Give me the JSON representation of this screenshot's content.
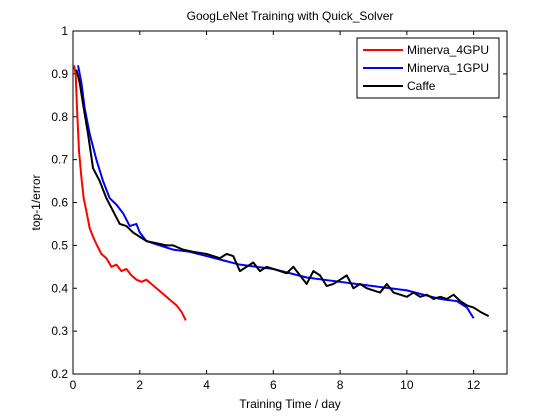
{
  "chart_data": {
    "type": "line",
    "title": "GoogLeNet Training with Quick_Solver",
    "xlabel": "Training Time / day",
    "ylabel": "top-1/error",
    "xlim": [
      0,
      13
    ],
    "ylim": [
      0.2,
      1
    ],
    "x_ticks": [
      0,
      2,
      4,
      6,
      8,
      10,
      12
    ],
    "y_ticks": [
      0.2,
      0.3,
      0.4,
      0.5,
      0.6,
      0.7,
      0.8,
      0.9,
      1
    ],
    "x_tick_labels": [
      "0",
      "2",
      "4",
      "6",
      "8",
      "10",
      "12"
    ],
    "y_tick_labels": [
      "0.2",
      "0.3",
      "0.4",
      "0.5",
      "0.6",
      "0.7",
      "0.8",
      "0.9",
      "1"
    ],
    "grid": false,
    "legend_position": "top-right",
    "series": [
      {
        "name": "Minerva_4GPU",
        "color": "#ff0000",
        "x": [
          0.03,
          0.08,
          0.12,
          0.18,
          0.25,
          0.32,
          0.4,
          0.5,
          0.6,
          0.72,
          0.85,
          1.0,
          1.15,
          1.3,
          1.45,
          1.6,
          1.75,
          1.9,
          2.05,
          2.2,
          2.35,
          2.5,
          2.65,
          2.8,
          2.95,
          3.1,
          3.25,
          3.38
        ],
        "y": [
          0.92,
          0.9,
          0.82,
          0.72,
          0.66,
          0.61,
          0.58,
          0.54,
          0.52,
          0.5,
          0.48,
          0.47,
          0.45,
          0.455,
          0.44,
          0.445,
          0.43,
          0.42,
          0.415,
          0.42,
          0.41,
          0.4,
          0.39,
          0.38,
          0.37,
          0.36,
          0.345,
          0.325
        ]
      },
      {
        "name": "Minerva_1GPU",
        "color": "#0000ff",
        "x": [
          0.15,
          0.25,
          0.35,
          0.5,
          0.7,
          0.9,
          1.1,
          1.3,
          1.5,
          1.7,
          1.9,
          2.0,
          2.2,
          2.6,
          3.0,
          3.5,
          4.0,
          4.5,
          5.0,
          5.5,
          6.0,
          6.5,
          7.0,
          7.5,
          8.0,
          8.5,
          9.0,
          9.5,
          10.0,
          10.5,
          11.0,
          11.5,
          11.8,
          12.0
        ],
        "y": [
          0.92,
          0.88,
          0.82,
          0.76,
          0.7,
          0.65,
          0.61,
          0.595,
          0.575,
          0.545,
          0.55,
          0.53,
          0.51,
          0.5,
          0.49,
          0.485,
          0.475,
          0.465,
          0.455,
          0.45,
          0.445,
          0.435,
          0.425,
          0.42,
          0.415,
          0.41,
          0.405,
          0.4,
          0.395,
          0.385,
          0.375,
          0.37,
          0.355,
          0.33
        ]
      },
      {
        "name": "Caffe",
        "color": "#000000",
        "x": [
          0.1,
          0.2,
          0.3,
          0.45,
          0.6,
          0.8,
          1.0,
          1.2,
          1.4,
          1.6,
          1.8,
          2.0,
          2.2,
          2.5,
          2.8,
          3.0,
          3.3,
          3.6,
          4.0,
          4.2,
          4.4,
          4.6,
          4.8,
          5.0,
          5.2,
          5.4,
          5.6,
          5.8,
          6.0,
          6.2,
          6.4,
          6.6,
          6.8,
          7.0,
          7.2,
          7.4,
          7.6,
          7.8,
          8.0,
          8.2,
          8.4,
          8.6,
          8.8,
          9.0,
          9.2,
          9.4,
          9.6,
          9.8,
          10.0,
          10.2,
          10.4,
          10.6,
          10.8,
          11.0,
          11.2,
          11.4,
          11.6,
          11.8,
          12.0,
          12.2,
          12.45
        ],
        "y": [
          0.91,
          0.88,
          0.83,
          0.76,
          0.68,
          0.65,
          0.61,
          0.58,
          0.55,
          0.545,
          0.53,
          0.52,
          0.51,
          0.505,
          0.5,
          0.5,
          0.49,
          0.485,
          0.48,
          0.475,
          0.47,
          0.48,
          0.475,
          0.44,
          0.45,
          0.46,
          0.44,
          0.45,
          0.445,
          0.44,
          0.435,
          0.45,
          0.43,
          0.41,
          0.44,
          0.43,
          0.405,
          0.41,
          0.42,
          0.43,
          0.4,
          0.41,
          0.4,
          0.395,
          0.39,
          0.41,
          0.39,
          0.385,
          0.38,
          0.39,
          0.38,
          0.385,
          0.375,
          0.38,
          0.375,
          0.385,
          0.37,
          0.36,
          0.355,
          0.345,
          0.335
        ]
      }
    ]
  }
}
